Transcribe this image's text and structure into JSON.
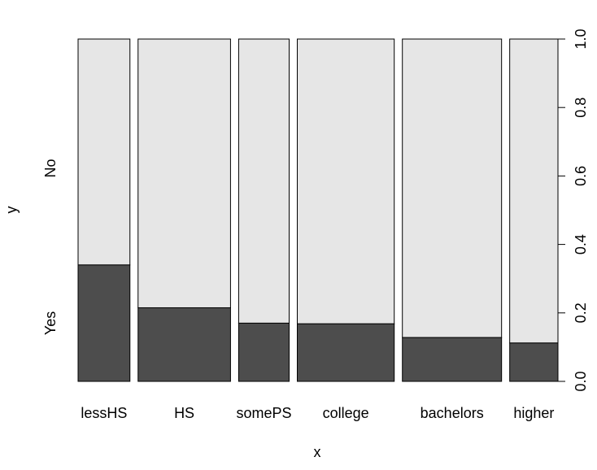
{
  "chart_data": {
    "type": "bar",
    "subtype": "stacked-proportion (spineplot)",
    "xlabel": "x",
    "ylabel": "y",
    "categories": [
      "lessHS",
      "HS",
      "somePS",
      "college",
      "bachelors",
      "higher"
    ],
    "category_widths": [
      0.115,
      0.205,
      0.112,
      0.215,
      0.22,
      0.107
    ],
    "series": [
      {
        "name": "Yes",
        "values": [
          0.34,
          0.215,
          0.17,
          0.168,
          0.128,
          0.112
        ]
      },
      {
        "name": "No",
        "values": [
          0.66,
          0.785,
          0.83,
          0.832,
          0.872,
          0.888
        ]
      }
    ],
    "ylim": [
      0,
      1
    ],
    "y_ticks": [
      "0.0",
      "0.2",
      "0.4",
      "0.6",
      "0.8",
      "1.0"
    ],
    "y_category_labels": [
      "Yes",
      "No"
    ],
    "grid": false,
    "legend": "none",
    "colors": {
      "Yes": "#4d4d4d",
      "No": "#e6e6e6",
      "outline": "#000000"
    }
  }
}
